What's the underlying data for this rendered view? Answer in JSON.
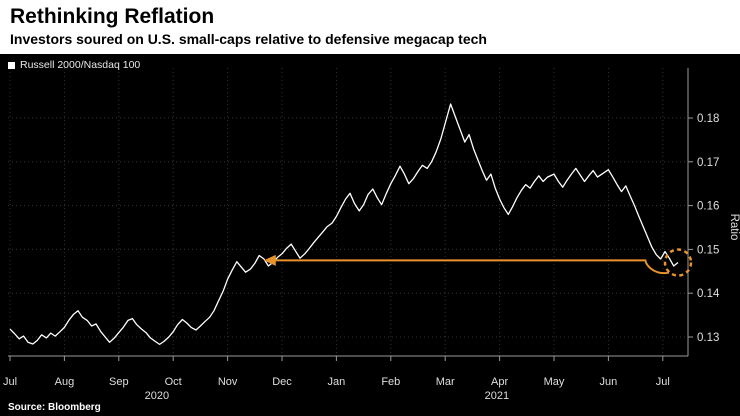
{
  "header": {
    "title": "Rethinking Reflation",
    "subtitle": "Investors soured on U.S. small-caps relative to defensive megacap tech"
  },
  "legend": {
    "label": "Russell 2000/Nasdaq 100"
  },
  "source": "Source: Bloomberg",
  "colors": {
    "chart_bg": "#000000",
    "line": "#FFFFFF",
    "grid": "#343434",
    "axis": "#9A9A9A",
    "axis_text": "#DFDFDF",
    "accent_orange": "#E8932E",
    "title_text": "#000000"
  },
  "chart_data": {
    "type": "line",
    "title": "Rethinking Reflation",
    "subtitle": "Investors soured on U.S. small-caps relative to defensive megacap tech",
    "series_name": "Russell 2000/Nasdaq 100",
    "xlabel": "",
    "ylabel": "Ratio",
    "y_ticks": [
      0.13,
      0.14,
      0.15,
      0.16,
      0.17,
      0.18
    ],
    "ylim": [
      0.126,
      0.191
    ],
    "x_range_label": "Jul 2020 - Jul 2021",
    "grid": true,
    "legend_position": "top-left",
    "x_ticks": [
      {
        "t": 0,
        "label": "Jul"
      },
      {
        "t": 1,
        "label": "Aug"
      },
      {
        "t": 2,
        "label": "Sep"
      },
      {
        "t": 3,
        "label": "Oct"
      },
      {
        "t": 4,
        "label": "Nov"
      },
      {
        "t": 5,
        "label": "Dec"
      },
      {
        "t": 6,
        "label": "Jan"
      },
      {
        "t": 7,
        "label": "Feb"
      },
      {
        "t": 8,
        "label": "Mar"
      },
      {
        "t": 9,
        "label": "Apr"
      },
      {
        "t": 10,
        "label": "May"
      },
      {
        "t": 11,
        "label": "Jun"
      },
      {
        "t": 12,
        "label": "Jul"
      }
    ],
    "year_labels": [
      {
        "t": 2.7,
        "label": "2020"
      },
      {
        "t": 8.95,
        "label": "2021"
      }
    ],
    "points": [
      [
        0.0,
        0.1318
      ],
      [
        0.08,
        0.1308
      ],
      [
        0.17,
        0.1296
      ],
      [
        0.25,
        0.1302
      ],
      [
        0.33,
        0.1288
      ],
      [
        0.42,
        0.1284
      ],
      [
        0.5,
        0.1292
      ],
      [
        0.58,
        0.1305
      ],
      [
        0.67,
        0.1298
      ],
      [
        0.75,
        0.1309
      ],
      [
        0.83,
        0.1302
      ],
      [
        0.92,
        0.1312
      ],
      [
        1.0,
        0.1322
      ],
      [
        1.08,
        0.1338
      ],
      [
        1.17,
        0.1352
      ],
      [
        1.25,
        0.136
      ],
      [
        1.33,
        0.1345
      ],
      [
        1.42,
        0.1338
      ],
      [
        1.5,
        0.1325
      ],
      [
        1.58,
        0.133
      ],
      [
        1.67,
        0.1312
      ],
      [
        1.75,
        0.13
      ],
      [
        1.83,
        0.1288
      ],
      [
        1.92,
        0.1298
      ],
      [
        2.0,
        0.131
      ],
      [
        2.08,
        0.1322
      ],
      [
        2.17,
        0.1338
      ],
      [
        2.25,
        0.1342
      ],
      [
        2.33,
        0.1328
      ],
      [
        2.42,
        0.1318
      ],
      [
        2.5,
        0.131
      ],
      [
        2.58,
        0.1298
      ],
      [
        2.67,
        0.129
      ],
      [
        2.75,
        0.1283
      ],
      [
        2.83,
        0.129
      ],
      [
        2.92,
        0.13
      ],
      [
        3.0,
        0.1312
      ],
      [
        3.08,
        0.1328
      ],
      [
        3.17,
        0.134
      ],
      [
        3.25,
        0.1332
      ],
      [
        3.33,
        0.1322
      ],
      [
        3.42,
        0.1316
      ],
      [
        3.5,
        0.1325
      ],
      [
        3.58,
        0.1335
      ],
      [
        3.67,
        0.1345
      ],
      [
        3.75,
        0.136
      ],
      [
        3.83,
        0.1382
      ],
      [
        3.92,
        0.1405
      ],
      [
        4.0,
        0.1432
      ],
      [
        4.08,
        0.1452
      ],
      [
        4.17,
        0.1472
      ],
      [
        4.25,
        0.146
      ],
      [
        4.33,
        0.1448
      ],
      [
        4.42,
        0.1455
      ],
      [
        4.5,
        0.1468
      ],
      [
        4.58,
        0.1486
      ],
      [
        4.67,
        0.1478
      ],
      [
        4.75,
        0.1462
      ],
      [
        4.83,
        0.147
      ],
      [
        4.92,
        0.1482
      ],
      [
        5.0,
        0.149
      ],
      [
        5.08,
        0.1502
      ],
      [
        5.17,
        0.1512
      ],
      [
        5.25,
        0.1496
      ],
      [
        5.33,
        0.148
      ],
      [
        5.42,
        0.149
      ],
      [
        5.5,
        0.1502
      ],
      [
        5.58,
        0.1515
      ],
      [
        5.67,
        0.1528
      ],
      [
        5.75,
        0.154
      ],
      [
        5.83,
        0.1552
      ],
      [
        5.92,
        0.156
      ],
      [
        6.0,
        0.1575
      ],
      [
        6.08,
        0.1595
      ],
      [
        6.17,
        0.1615
      ],
      [
        6.25,
        0.1628
      ],
      [
        6.33,
        0.1605
      ],
      [
        6.42,
        0.1588
      ],
      [
        6.5,
        0.1602
      ],
      [
        6.58,
        0.1625
      ],
      [
        6.67,
        0.1638
      ],
      [
        6.75,
        0.1618
      ],
      [
        6.83,
        0.1602
      ],
      [
        6.92,
        0.1628
      ],
      [
        7.0,
        0.165
      ],
      [
        7.08,
        0.1668
      ],
      [
        7.17,
        0.169
      ],
      [
        7.25,
        0.1672
      ],
      [
        7.33,
        0.165
      ],
      [
        7.42,
        0.1662
      ],
      [
        7.5,
        0.1678
      ],
      [
        7.58,
        0.1692
      ],
      [
        7.67,
        0.1685
      ],
      [
        7.75,
        0.17
      ],
      [
        7.83,
        0.1722
      ],
      [
        7.92,
        0.1752
      ],
      [
        8.0,
        0.1788
      ],
      [
        8.1,
        0.1832
      ],
      [
        8.2,
        0.1798
      ],
      [
        8.28,
        0.1772
      ],
      [
        8.36,
        0.1745
      ],
      [
        8.44,
        0.1762
      ],
      [
        8.52,
        0.173
      ],
      [
        8.6,
        0.1705
      ],
      [
        8.68,
        0.168
      ],
      [
        8.76,
        0.1658
      ],
      [
        8.84,
        0.1672
      ],
      [
        8.92,
        0.164
      ],
      [
        9.0,
        0.1615
      ],
      [
        9.08,
        0.1595
      ],
      [
        9.16,
        0.158
      ],
      [
        9.24,
        0.1598
      ],
      [
        9.32,
        0.1618
      ],
      [
        9.4,
        0.1635
      ],
      [
        9.48,
        0.1648
      ],
      [
        9.56,
        0.164
      ],
      [
        9.64,
        0.1655
      ],
      [
        9.72,
        0.1668
      ],
      [
        9.8,
        0.1655
      ],
      [
        9.88,
        0.1665
      ],
      [
        10.0,
        0.1672
      ],
      [
        10.08,
        0.1655
      ],
      [
        10.16,
        0.1642
      ],
      [
        10.24,
        0.1658
      ],
      [
        10.32,
        0.1672
      ],
      [
        10.4,
        0.1685
      ],
      [
        10.48,
        0.167
      ],
      [
        10.56,
        0.1655
      ],
      [
        10.64,
        0.1668
      ],
      [
        10.72,
        0.168
      ],
      [
        10.8,
        0.1665
      ],
      [
        10.92,
        0.1675
      ],
      [
        11.0,
        0.1682
      ],
      [
        11.08,
        0.1665
      ],
      [
        11.16,
        0.1648
      ],
      [
        11.24,
        0.1632
      ],
      [
        11.32,
        0.1645
      ],
      [
        11.4,
        0.1622
      ],
      [
        11.48,
        0.16
      ],
      [
        11.56,
        0.1575
      ],
      [
        11.64,
        0.1552
      ],
      [
        11.72,
        0.1528
      ],
      [
        11.8,
        0.1505
      ],
      [
        11.88,
        0.1488
      ],
      [
        11.96,
        0.1478
      ],
      [
        12.04,
        0.1495
      ],
      [
        12.12,
        0.148
      ],
      [
        12.2,
        0.1462
      ],
      [
        12.28,
        0.147
      ]
    ],
    "annotations": {
      "arrow": {
        "value": 0.1475,
        "from_t": 11.68,
        "to_t": 4.72,
        "color": "#E8932E"
      },
      "circle": {
        "t": 12.28,
        "value": 0.147,
        "radius": 13,
        "color": "#E8932E"
      }
    }
  }
}
